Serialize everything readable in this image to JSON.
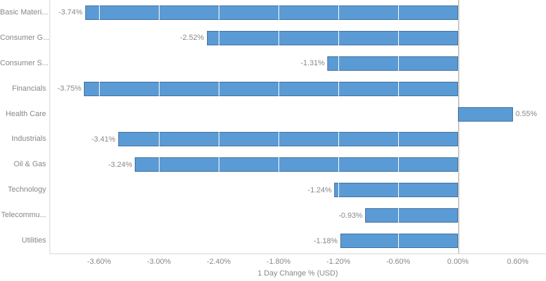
{
  "chart_data": {
    "type": "bar",
    "orientation": "horizontal",
    "title": "",
    "xlabel": "1 Day Change % (USD)",
    "ylabel": "",
    "categories": [
      "Basic Materi...",
      "Consumer G...",
      "Consumer S...",
      "Financials",
      "Health Care",
      "Industrials",
      "Oil & Gas",
      "Technology",
      "Telecommu...",
      "Utilities"
    ],
    "values": [
      -3.74,
      -2.52,
      -1.31,
      -3.75,
      0.55,
      -3.41,
      -3.24,
      -1.24,
      -0.93,
      -1.18
    ],
    "value_labels": [
      "-3.74%",
      "-2.52%",
      "-1.31%",
      "-3.75%",
      "0.55%",
      "-3.41%",
      "-3.24%",
      "-1.24%",
      "-0.93%",
      "-1.18%"
    ],
    "x_ticks": [
      -3.6,
      -3.0,
      -2.4,
      -1.8,
      -1.2,
      -0.6,
      0.0,
      0.6
    ],
    "x_tick_labels": [
      "-3.60%",
      "-3.00%",
      "-2.40%",
      "-1.80%",
      "-1.20%",
      "-0.60%",
      "0.00%",
      "0.60%"
    ],
    "xlim": [
      -4.098,
      0.883
    ],
    "grid": "white vertical gridlines visible over bars only",
    "legend": "none",
    "colors": {
      "bar_fill": "#5B9BD5",
      "bar_border": "#41719C",
      "axis_line": "#d7d7d7",
      "zero_line": "#c9c9c9",
      "gridline": "#ffffff",
      "text": "#878787",
      "background": "#ffffff"
    }
  }
}
